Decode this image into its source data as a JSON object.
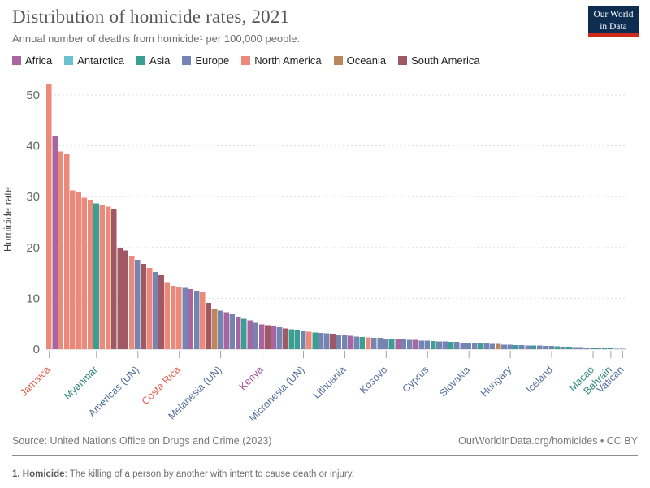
{
  "header": {
    "title": "Distribution of homicide rates, 2021",
    "subtitle": "Annual number of deaths from homicide¹ per 100,000 people.",
    "logo_line1": "Our World",
    "logo_line2": "in Data"
  },
  "legend": {
    "items": [
      {
        "key": "africa",
        "label": "Africa"
      },
      {
        "key": "antarctica",
        "label": "Antarctica"
      },
      {
        "key": "asia",
        "label": "Asia"
      },
      {
        "key": "europe",
        "label": "Europe"
      },
      {
        "key": "north_america",
        "label": "North America"
      },
      {
        "key": "oceania",
        "label": "Oceania"
      },
      {
        "key": "south_america",
        "label": "South America"
      }
    ]
  },
  "colors": {
    "bar": {
      "africa": "#a765a2",
      "antarctica": "#6bc2ce",
      "asia": "#3b9e92",
      "europe": "#7485b2",
      "north_america": "#eb8a7a",
      "oceania": "#bd875e",
      "south_america": "#a05865",
      "un": "#7485b2"
    },
    "label": {
      "africa": "#a2559c",
      "antarctica": "#3a9aa8",
      "asia": "#2d847c",
      "europe": "#536e9c",
      "north_america": "#e2604d",
      "oceania": "#a9745a",
      "south_america": "#883039",
      "un": "#536e9c"
    },
    "grid": "#dddddd",
    "axis_text": "#666666",
    "tick_stub": "#a0a0a0"
  },
  "chart_data": {
    "type": "bar",
    "title": "Distribution of homicide rates, 2021",
    "ylabel": "Homicide rate",
    "ylim": [
      0,
      52.1
    ],
    "y_ticks": [
      0,
      10,
      20,
      30,
      40,
      50
    ],
    "grid": "dashed",
    "note": "Each bar is one country/region, sorted descending; colored by continent.",
    "values": [
      52.1,
      41.9,
      38.9,
      38.3,
      31.2,
      30.8,
      29.8,
      29.4,
      28.7,
      28.4,
      28.0,
      27.5,
      19.9,
      19.4,
      18.4,
      17.6,
      16.8,
      16.0,
      15.2,
      14.5,
      13.2,
      12.5,
      12.3,
      12.1,
      11.8,
      11.5,
      11.2,
      9.1,
      7.8,
      7.6,
      7.3,
      6.9,
      6.3,
      6.0,
      5.7,
      5.2,
      4.9,
      4.7,
      4.5,
      4.3,
      4.1,
      3.9,
      3.7,
      3.5,
      3.4,
      3.3,
      3.2,
      3.1,
      3.0,
      2.8,
      2.7,
      2.6,
      2.5,
      2.4,
      2.3,
      2.25,
      2.2,
      2.1,
      2.0,
      1.95,
      1.9,
      1.85,
      1.8,
      1.7,
      1.65,
      1.6,
      1.55,
      1.5,
      1.45,
      1.4,
      1.3,
      1.25,
      1.2,
      1.15,
      1.1,
      1.05,
      1.0,
      0.9,
      0.85,
      0.8,
      0.78,
      0.75,
      0.72,
      0.7,
      0.65,
      0.6,
      0.55,
      0.5,
      0.45,
      0.42,
      0.4,
      0.35,
      0.3,
      0.25,
      0.2,
      0.18,
      0.1,
      0.05
    ],
    "continents": [
      "north_america",
      "africa",
      "north_america",
      "north_america",
      "north_america",
      "north_america",
      "north_america",
      "north_america",
      "asia",
      "north_america",
      "north_america",
      "south_america",
      "south_america",
      "south_america",
      "north_america",
      "un",
      "south_america",
      "north_america",
      "europe",
      "south_america",
      "north_america",
      "north_america",
      "north_america",
      "europe",
      "africa",
      "europe",
      "north_america",
      "south_america",
      "oceania",
      "un",
      "africa",
      "europe",
      "africa",
      "asia",
      "africa",
      "europe",
      "africa",
      "south_america",
      "africa",
      "europe",
      "south_america",
      "asia",
      "asia",
      "un",
      "north_america",
      "asia",
      "europe",
      "europe",
      "south_america",
      "europe",
      "europe",
      "africa",
      "europe",
      "asia",
      "north_america",
      "europe",
      "europe",
      "europe",
      "asia",
      "africa",
      "europe",
      "europe",
      "africa",
      "europe",
      "europe",
      "asia",
      "europe",
      "europe",
      "asia",
      "europe",
      "europe",
      "europe",
      "europe",
      "asia",
      "europe",
      "europe",
      "oceania",
      "europe",
      "europe",
      "asia",
      "europe",
      "europe",
      "asia",
      "europe",
      "europe",
      "europe",
      "asia",
      "europe",
      "asia",
      "europe",
      "europe",
      "europe",
      "asia",
      "europe",
      "asia",
      "asia",
      "europe",
      "europe"
    ],
    "x_tick_labels": [
      {
        "bar": 1,
        "label": "Jamaica",
        "key": "north_america"
      },
      {
        "bar": 9,
        "label": "Myanmar",
        "key": "asia"
      },
      {
        "bar": 16,
        "label": "Americas (UN)",
        "key": "un"
      },
      {
        "bar": 23,
        "label": "Costa Rica",
        "key": "north_america"
      },
      {
        "bar": 30,
        "label": "Melanesia (UN)",
        "key": "un"
      },
      {
        "bar": 37,
        "label": "Kenya",
        "key": "africa"
      },
      {
        "bar": 44,
        "label": "Micronesia (UN)",
        "key": "un"
      },
      {
        "bar": 51,
        "label": "Lithuania",
        "key": "europe"
      },
      {
        "bar": 58,
        "label": "Kosovo",
        "key": "europe"
      },
      {
        "bar": 65,
        "label": "Cyprus",
        "key": "europe"
      },
      {
        "bar": 72,
        "label": "Slovakia",
        "key": "europe"
      },
      {
        "bar": 79,
        "label": "Hungary",
        "key": "europe"
      },
      {
        "bar": 86,
        "label": "Iceland",
        "key": "europe"
      },
      {
        "bar": 93,
        "label": "Macao",
        "key": "asia"
      },
      {
        "bar": 96,
        "label": "Bahrain",
        "key": "asia"
      },
      {
        "bar": 98,
        "label": "Vatican",
        "key": "europe"
      }
    ]
  },
  "footer": {
    "source": "Source: United Nations Office on Drugs and Crime (2023)",
    "rights": "OurWorldInData.org/homicides • CC BY",
    "note_bold": "1. Homicide",
    "note_rest": ": The killing of a person by another with intent to cause death or injury."
  }
}
